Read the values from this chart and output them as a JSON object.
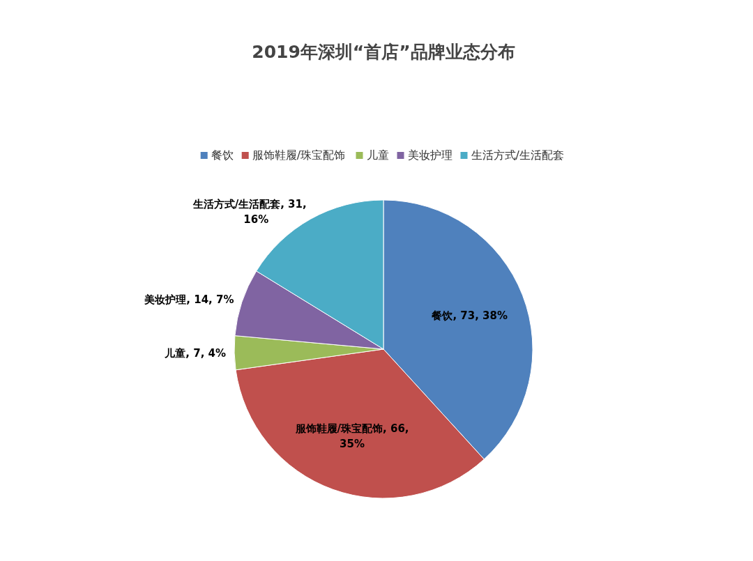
{
  "chart_data": {
    "type": "pie",
    "title": "2019年深圳“首店”品牌业态分布",
    "categories": [
      "餐饮",
      "服饰鞋履/珠宝配饰",
      "儿童",
      "美妆护理",
      "生活方式/生活配套"
    ],
    "values": [
      73,
      66,
      7,
      14,
      31
    ],
    "value_labels": [
      "餐饮, 73, 38%",
      "服饰鞋履/珠宝配饰, 66, 35%",
      "儿童, 7, 4%",
      "美妆护理, 14, 7%",
      "生活方式/生活配套, 31, 16%"
    ],
    "colors": [
      "#4f81bd",
      "#c0504d",
      "#9bbb59",
      "#8064a2",
      "#4bacc6"
    ],
    "legend": "top"
  }
}
